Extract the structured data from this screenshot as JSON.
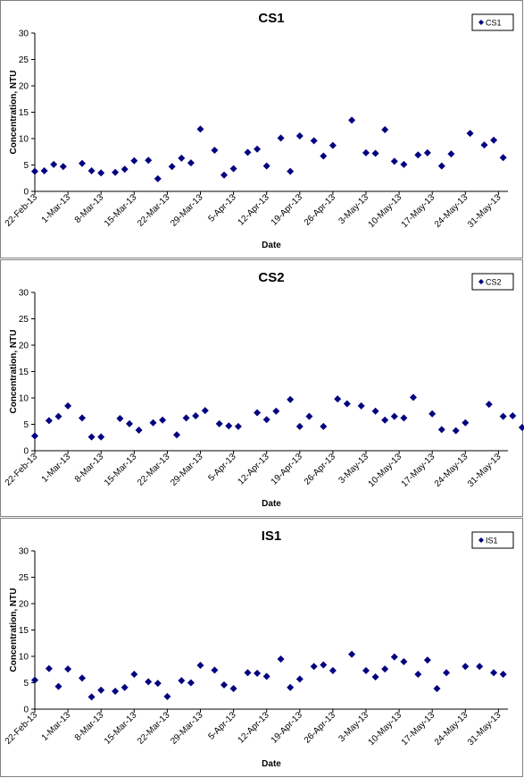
{
  "chart_data": [
    {
      "type": "scatter",
      "title": "CS1",
      "xlabel": "Date",
      "ylabel": "Concentration, NTU",
      "ylim": [
        0,
        30
      ],
      "yticks": [
        0,
        5,
        10,
        15,
        20,
        25,
        30
      ],
      "xlim": [
        "2013-02-22",
        "2013-06-02"
      ],
      "xtick_labels": [
        "22-Feb-13",
        "1-Mar-13",
        "8-Mar-13",
        "15-Mar-13",
        "22-Mar-13",
        "29-Mar-13",
        "5-Apr-13",
        "12-Apr-13",
        "19-Apr-13",
        "26-Apr-13",
        "3-May-13",
        "10-May-13",
        "17-May-13",
        "24-May-13",
        "31-May-13"
      ],
      "grid": false,
      "legend_position": "top-right",
      "marker_color": "#000080",
      "series": [
        {
          "name": "CS1",
          "points": [
            [
              "2013-02-22",
              3.8
            ],
            [
              "2013-02-24",
              3.9
            ],
            [
              "2013-02-26",
              5.1
            ],
            [
              "2013-02-28",
              4.7
            ],
            [
              "2013-03-04",
              5.3
            ],
            [
              "2013-03-06",
              3.9
            ],
            [
              "2013-03-08",
              3.5
            ],
            [
              "2013-03-11",
              3.6
            ],
            [
              "2013-03-13",
              4.2
            ],
            [
              "2013-03-15",
              5.8
            ],
            [
              "2013-03-18",
              5.9
            ],
            [
              "2013-03-20",
              2.4
            ],
            [
              "2013-03-23",
              4.7
            ],
            [
              "2013-03-25",
              6.3
            ],
            [
              "2013-03-27",
              5.4
            ],
            [
              "2013-03-29",
              11.8
            ],
            [
              "2013-04-01",
              7.8
            ],
            [
              "2013-04-03",
              3.1
            ],
            [
              "2013-04-05",
              4.3
            ],
            [
              "2013-04-08",
              7.4
            ],
            [
              "2013-04-10",
              8.0
            ],
            [
              "2013-04-12",
              4.8
            ],
            [
              "2013-04-15",
              10.1
            ],
            [
              "2013-04-17",
              3.8
            ],
            [
              "2013-04-19",
              10.5
            ],
            [
              "2013-04-22",
              9.6
            ],
            [
              "2013-04-24",
              6.7
            ],
            [
              "2013-04-26",
              8.7
            ],
            [
              "2013-04-30",
              13.5
            ],
            [
              "2013-05-03",
              7.3
            ],
            [
              "2013-05-05",
              7.2
            ],
            [
              "2013-05-07",
              11.7
            ],
            [
              "2013-05-09",
              5.7
            ],
            [
              "2013-05-11",
              5.1
            ],
            [
              "2013-05-14",
              6.9
            ],
            [
              "2013-05-16",
              7.3
            ],
            [
              "2013-05-19",
              4.8
            ],
            [
              "2013-05-21",
              7.1
            ],
            [
              "2013-05-25",
              11.0
            ],
            [
              "2013-05-28",
              8.8
            ],
            [
              "2013-05-30",
              9.7
            ],
            [
              "2013-06-01",
              6.4
            ]
          ]
        }
      ]
    },
    {
      "type": "scatter",
      "title": "CS2",
      "xlabel": "Date",
      "ylabel": "Concentration, NTU",
      "ylim": [
        0,
        30
      ],
      "yticks": [
        0,
        5,
        10,
        15,
        20,
        25,
        30
      ],
      "xlim": [
        "2013-02-22",
        "2013-06-02"
      ],
      "xtick_labels": [
        "22-Feb-13",
        "1-Mar-13",
        "8-Mar-13",
        "15-Mar-13",
        "22-Mar-13",
        "29-Mar-13",
        "5-Apr-13",
        "12-Apr-13",
        "19-Apr-13",
        "26-Apr-13",
        "3-May-13",
        "10-May-13",
        "17-May-13",
        "24-May-13",
        "31-May-13"
      ],
      "grid": false,
      "legend_position": "top-right",
      "marker_color": "#000080",
      "series": [
        {
          "name": "CS2",
          "points": [
            [
              "2013-02-22",
              2.8
            ],
            [
              "2013-02-25",
              5.7
            ],
            [
              "2013-02-27",
              6.5
            ],
            [
              "2013-03-01",
              8.5
            ],
            [
              "2013-03-04",
              6.2
            ],
            [
              "2013-03-06",
              2.6
            ],
            [
              "2013-03-08",
              2.6
            ],
            [
              "2013-03-12",
              6.1
            ],
            [
              "2013-03-14",
              5.1
            ],
            [
              "2013-03-16",
              3.9
            ],
            [
              "2013-03-19",
              5.3
            ],
            [
              "2013-03-21",
              5.8
            ],
            [
              "2013-03-24",
              3.0
            ],
            [
              "2013-03-26",
              6.2
            ],
            [
              "2013-03-28",
              6.6
            ],
            [
              "2013-03-30",
              7.6
            ],
            [
              "2013-04-02",
              5.1
            ],
            [
              "2013-04-04",
              4.7
            ],
            [
              "2013-04-06",
              4.6
            ],
            [
              "2013-04-10",
              7.2
            ],
            [
              "2013-04-12",
              5.9
            ],
            [
              "2013-04-14",
              7.5
            ],
            [
              "2013-04-17",
              9.7
            ],
            [
              "2013-04-19",
              4.6
            ],
            [
              "2013-04-21",
              6.5
            ],
            [
              "2013-04-24",
              4.6
            ],
            [
              "2013-04-27",
              9.8
            ],
            [
              "2013-04-29",
              8.9
            ],
            [
              "2013-05-02",
              8.5
            ],
            [
              "2013-05-05",
              7.5
            ],
            [
              "2013-05-07",
              5.8
            ],
            [
              "2013-05-09",
              6.5
            ],
            [
              "2013-05-11",
              6.2
            ],
            [
              "2013-05-13",
              10.1
            ],
            [
              "2013-05-17",
              7.0
            ],
            [
              "2013-05-19",
              4.0
            ],
            [
              "2013-05-22",
              3.8
            ],
            [
              "2013-05-24",
              5.3
            ],
            [
              "2013-05-29",
              8.8
            ],
            [
              "2013-06-01",
              6.5
            ],
            [
              "2013-06-03",
              6.6
            ],
            [
              "2013-06-05",
              4.4
            ]
          ]
        }
      ]
    },
    {
      "type": "scatter",
      "title": "IS1",
      "xlabel": "Date",
      "ylabel": "Concentration, NTU",
      "ylim": [
        0,
        30
      ],
      "yticks": [
        0,
        5,
        10,
        15,
        20,
        25,
        30
      ],
      "xlim": [
        "2013-02-22",
        "2013-06-02"
      ],
      "xtick_labels": [
        "22-Feb-13",
        "1-Mar-13",
        "8-Mar-13",
        "15-Mar-13",
        "22-Mar-13",
        "29-Mar-13",
        "5-Apr-13",
        "12-Apr-13",
        "19-Apr-13",
        "26-Apr-13",
        "3-May-13",
        "10-May-13",
        "17-May-13",
        "24-May-13",
        "31-May-13"
      ],
      "grid": false,
      "legend_position": "top-right",
      "marker_color": "#000080",
      "series": [
        {
          "name": "IS1",
          "points": [
            [
              "2013-02-22",
              5.5
            ],
            [
              "2013-02-25",
              7.7
            ],
            [
              "2013-02-27",
              4.3
            ],
            [
              "2013-03-01",
              7.6
            ],
            [
              "2013-03-04",
              5.9
            ],
            [
              "2013-03-06",
              2.3
            ],
            [
              "2013-03-08",
              3.6
            ],
            [
              "2013-03-11",
              3.4
            ],
            [
              "2013-03-13",
              4.1
            ],
            [
              "2013-03-15",
              6.6
            ],
            [
              "2013-03-18",
              5.2
            ],
            [
              "2013-03-20",
              4.9
            ],
            [
              "2013-03-22",
              2.4
            ],
            [
              "2013-03-25",
              5.4
            ],
            [
              "2013-03-27",
              5.0
            ],
            [
              "2013-03-29",
              8.3
            ],
            [
              "2013-04-01",
              7.4
            ],
            [
              "2013-04-03",
              4.6
            ],
            [
              "2013-04-05",
              3.9
            ],
            [
              "2013-04-08",
              6.9
            ],
            [
              "2013-04-10",
              6.8
            ],
            [
              "2013-04-12",
              6.2
            ],
            [
              "2013-04-15",
              9.5
            ],
            [
              "2013-04-17",
              4.1
            ],
            [
              "2013-04-19",
              5.7
            ],
            [
              "2013-04-22",
              8.1
            ],
            [
              "2013-04-24",
              8.4
            ],
            [
              "2013-04-26",
              7.3
            ],
            [
              "2013-04-30",
              10.4
            ],
            [
              "2013-05-03",
              7.3
            ],
            [
              "2013-05-05",
              6.1
            ],
            [
              "2013-05-07",
              7.6
            ],
            [
              "2013-05-09",
              9.9
            ],
            [
              "2013-05-11",
              9.0
            ],
            [
              "2013-05-14",
              6.6
            ],
            [
              "2013-05-16",
              9.3
            ],
            [
              "2013-05-18",
              3.9
            ],
            [
              "2013-05-20",
              6.9
            ],
            [
              "2013-05-24",
              8.1
            ],
            [
              "2013-05-27",
              8.1
            ],
            [
              "2013-05-30",
              6.9
            ],
            [
              "2013-06-01",
              6.6
            ]
          ]
        }
      ]
    }
  ]
}
